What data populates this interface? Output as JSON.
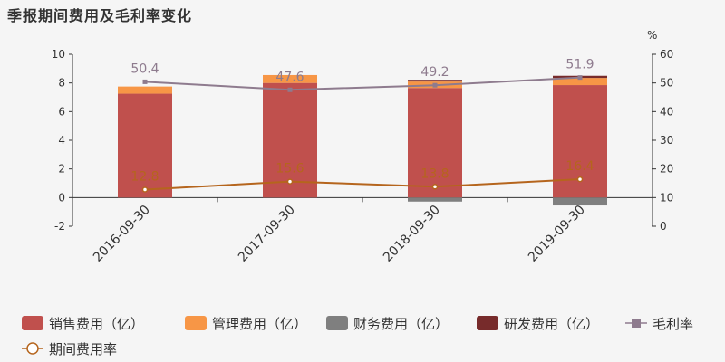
{
  "chart_data": {
    "type": "bar",
    "title": "季报期间费用及毛利率变化",
    "categories": [
      "2016-09-30",
      "2017-09-30",
      "2018-09-30",
      "2019-09-30"
    ],
    "series": [
      {
        "name": "销售费用（亿）",
        "kind": "bar",
        "axis": "left",
        "color": "#c0504d",
        "values": [
          7.25,
          8.0,
          7.65,
          7.85
        ]
      },
      {
        "name": "管理费用（亿）",
        "kind": "bar",
        "axis": "left",
        "color": "#f79646",
        "values": [
          0.5,
          0.55,
          0.45,
          0.5
        ]
      },
      {
        "name": "财务费用（亿）",
        "kind": "bar",
        "axis": "left",
        "color": "#7f7f7f",
        "values": [
          0.0,
          0.0,
          -0.28,
          -0.55
        ]
      },
      {
        "name": "研发费用（亿）",
        "kind": "bar",
        "axis": "left",
        "color": "#772b2b",
        "values": [
          0.0,
          0.0,
          0.12,
          0.15
        ]
      },
      {
        "name": "毛利率",
        "kind": "line",
        "axis": "right",
        "color": "#8e7b8e",
        "marker": "square",
        "values": [
          50.4,
          47.6,
          49.2,
          51.9
        ],
        "labels": [
          "50.4",
          "47.6",
          "49.2",
          "51.9"
        ]
      },
      {
        "name": "期间费用率",
        "kind": "line",
        "axis": "right",
        "color": "#b5651d",
        "marker": "circle",
        "values": [
          12.8,
          15.6,
          13.8,
          16.4
        ],
        "labels": [
          "12.8",
          "15.6",
          "13.8",
          "16.4"
        ]
      }
    ],
    "left_axis": {
      "ylim": [
        -2,
        10
      ],
      "ticks": [
        "-2",
        "0",
        "2",
        "4",
        "6",
        "8",
        "10"
      ]
    },
    "right_axis": {
      "label": "%",
      "ylim": [
        0,
        60
      ],
      "ticks": [
        "0",
        "10",
        "20",
        "30",
        "40",
        "50",
        "60"
      ]
    },
    "legend_position": "bottom",
    "grid": false
  }
}
